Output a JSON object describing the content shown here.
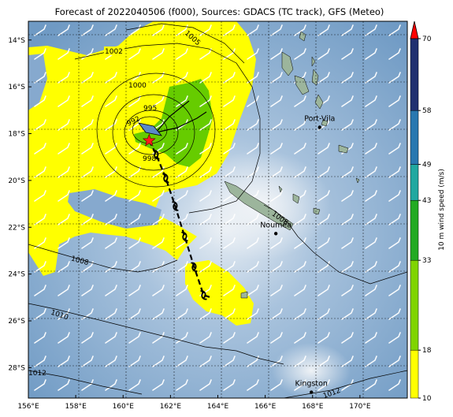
{
  "title": "Forecast of 2022040506 (f000), Sources: GDACS (TC track), GFS (Meteo)",
  "map": {
    "lon_range": [
      156,
      172
    ],
    "lat_range": [
      -29.3,
      -13.2
    ],
    "lon_ticks": [
      "156°E",
      "158°E",
      "160°E",
      "162°E",
      "164°E",
      "166°E",
      "168°E",
      "170°E"
    ],
    "lat_ticks": [
      "14°S",
      "16°S",
      "18°S",
      "20°S",
      "22°S",
      "24°S",
      "26°S",
      "28°S"
    ],
    "grid": true,
    "isobars": [
      "1002",
      "1005",
      "1000",
      "995",
      "992",
      "998",
      "1008",
      "1010",
      "1008",
      "1012",
      "1012"
    ],
    "places": [
      {
        "name": "Port-Vila",
        "lon": 168.3,
        "lat": -17.73
      },
      {
        "name": "Nouméa",
        "lon": 166.45,
        "lat": -22.27
      },
      {
        "name": "Kingston",
        "lon": 167.95,
        "lat": -29.05
      }
    ],
    "storm_marker": {
      "lon": 161.1,
      "lat": -18.3,
      "symbol": "red-star"
    },
    "track": [
      {
        "lon": 161.1,
        "lat": -18.3
      },
      {
        "lon": 161.4,
        "lat": -18.9
      },
      {
        "lon": 161.8,
        "lat": -19.9
      },
      {
        "lon": 162.2,
        "lat": -21.1
      },
      {
        "lon": 162.6,
        "lat": -22.4
      },
      {
        "lon": 163.0,
        "lat": -23.7
      },
      {
        "lon": 163.4,
        "lat": -24.9
      },
      {
        "lon": 163.7,
        "lat": -25.0
      }
    ]
  },
  "colorbar": {
    "label": "10 m wind speed (m/s)",
    "ticks": [
      "10",
      "18",
      "33",
      "43",
      "49",
      "58",
      "70"
    ],
    "colors": [
      "#ffff00",
      "#80d400",
      "#22aa22",
      "#20a8a0",
      "#2878b0",
      "#203070"
    ],
    "extend_color": "#ff0000"
  }
}
